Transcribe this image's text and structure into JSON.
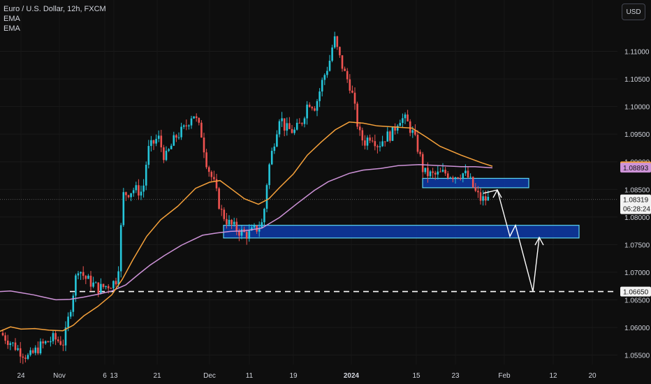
{
  "legend": {
    "symbol": "Euro / U.S. Dollar, 12h, FXCM",
    "ind1": "EMA",
    "ind2": "EMA"
  },
  "currency_button": "USD",
  "colors": {
    "background": "#0e0e0e",
    "up": "#26c6da",
    "down": "#ef5350",
    "ema_fast": "#f7a23b",
    "ema_slow": "#ce93d8",
    "zone_fill": "#0d3aa8",
    "zone_border": "#5dd6f0",
    "text": "#d1d4dc"
  },
  "price_tags": {
    "ema_fast": "1.08917",
    "ema_slow": "1.08893",
    "last": "1.08319",
    "countdown": "06:28:24",
    "support": "1.06650"
  },
  "chart_data": {
    "type": "candlestick",
    "title": "Euro / U.S. Dollar, 12h, FXCM",
    "y_ticks": [
      "1.11000",
      "1.10500",
      "1.10000",
      "1.09500",
      "1.09000",
      "1.08500",
      "1.08000",
      "1.07500",
      "1.07000",
      "1.06500",
      "1.06000",
      "1.05500"
    ],
    "x_ticks": [
      "24",
      "Nov",
      "6",
      "13",
      "21",
      "Dec",
      "11",
      "19",
      "2024",
      "15",
      "23",
      "Feb",
      "12",
      "20"
    ],
    "ylim": [
      1.0514,
      1.1193
    ],
    "series": [
      {
        "name": "EMA",
        "type": "ema",
        "values": [
          [
            0,
            1.0665
          ],
          [
            15,
            1.0666
          ],
          [
            30,
            1.0663
          ],
          [
            48,
            1.0659
          ],
          [
            62,
            1.0655
          ],
          [
            80,
            1.065
          ],
          [
            100,
            1.0651
          ],
          [
            120,
            1.0655
          ],
          [
            140,
            1.066
          ],
          [
            160,
            1.0666
          ],
          [
            180,
            1.0677
          ],
          [
            200,
            1.0698
          ],
          [
            215,
            1.0713
          ],
          [
            235,
            1.073
          ],
          [
            260,
            1.0749
          ],
          [
            290,
            1.0767
          ],
          [
            310,
            1.0771
          ],
          [
            330,
            1.0774
          ],
          [
            350,
            1.0775
          ],
          [
            375,
            1.078
          ],
          [
            400,
            1.0799
          ],
          [
            425,
            1.0824
          ],
          [
            450,
            1.0848
          ],
          [
            470,
            1.0864
          ],
          [
            500,
            1.0879
          ],
          [
            520,
            1.0885
          ],
          [
            545,
            1.0888
          ],
          [
            570,
            1.0893
          ],
          [
            600,
            1.0895
          ],
          [
            630,
            1.0893
          ],
          [
            660,
            1.0891
          ],
          [
            680,
            1.0891
          ],
          [
            705,
            1.0889
          ]
        ]
      },
      {
        "name": "EMA",
        "type": "ema",
        "values": [
          [
            0,
            1.0593
          ],
          [
            15,
            1.0601
          ],
          [
            30,
            1.0597
          ],
          [
            50,
            1.0598
          ],
          [
            70,
            1.0595
          ],
          [
            90,
            1.0594
          ],
          [
            105,
            1.0604
          ],
          [
            120,
            1.0621
          ],
          [
            140,
            1.0638
          ],
          [
            160,
            1.0659
          ],
          [
            175,
            1.0687
          ],
          [
            190,
            1.0722
          ],
          [
            210,
            1.0765
          ],
          [
            230,
            1.0795
          ],
          [
            255,
            1.082
          ],
          [
            280,
            1.0852
          ],
          [
            300,
            1.0863
          ],
          [
            315,
            1.0866
          ],
          [
            330,
            1.0852
          ],
          [
            350,
            1.0833
          ],
          [
            370,
            1.0823
          ],
          [
            385,
            1.0833
          ],
          [
            400,
            1.0853
          ],
          [
            420,
            1.0878
          ],
          [
            440,
            1.0912
          ],
          [
            460,
            1.0936
          ],
          [
            480,
            1.0958
          ],
          [
            500,
            1.0972
          ],
          [
            520,
            1.097
          ],
          [
            540,
            1.0965
          ],
          [
            565,
            1.0963
          ],
          [
            590,
            1.0961
          ],
          [
            610,
            1.0945
          ],
          [
            630,
            1.0928
          ],
          [
            660,
            1.0912
          ],
          [
            690,
            1.0898
          ],
          [
            705,
            1.0892
          ]
        ]
      }
    ],
    "annotations": {
      "zones": [
        {
          "from_x": 320,
          "to_x": 829,
          "top": 1.0785,
          "bottom": 1.0762
        },
        {
          "from_x": 605,
          "to_x": 757,
          "top": 1.087,
          "bottom": 1.0853
        }
      ],
      "support_level": 1.0665,
      "last_price": 1.08319,
      "projection": [
        [
          692,
          1.0843
        ],
        [
          712,
          1.0849
        ],
        [
          730,
          1.0765
        ],
        [
          738,
          1.0785
        ],
        [
          763,
          1.0665
        ],
        [
          772,
          1.0763
        ]
      ]
    }
  }
}
